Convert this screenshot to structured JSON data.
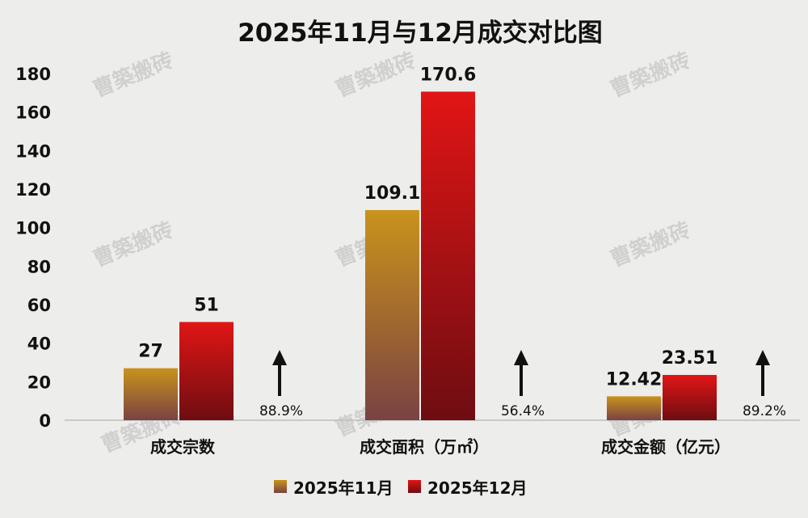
{
  "chart_data": {
    "type": "bar",
    "title": "2025年11月与12月成交对比图",
    "categories": [
      "成交宗数",
      "成交面积（万㎡）",
      "成交金额（亿元）"
    ],
    "series": [
      {
        "name": "2025年11月",
        "values": [
          27,
          109.1,
          12.42
        ],
        "labels": [
          "27",
          "109.1",
          "12.42"
        ]
      },
      {
        "name": "2025年12月",
        "values": [
          51,
          170.6,
          23.51
        ],
        "labels": [
          "51",
          "170.6",
          "23.51"
        ]
      }
    ],
    "growth": [
      "88.9%",
      "56.4%",
      "89.2%"
    ],
    "ylim": [
      0,
      180
    ],
    "yticks": [
      "0",
      "20",
      "40",
      "60",
      "80",
      "100",
      "120",
      "140",
      "160",
      "180"
    ],
    "grid": false,
    "legend": "bottom"
  },
  "watermark": "曹築搬砖",
  "colors": {
    "nov_top": "#c9931c",
    "nov_bottom": "#7a4242",
    "dec_top": "#e11515",
    "dec_bottom": "#6e0d12",
    "background": "#ededeb"
  }
}
